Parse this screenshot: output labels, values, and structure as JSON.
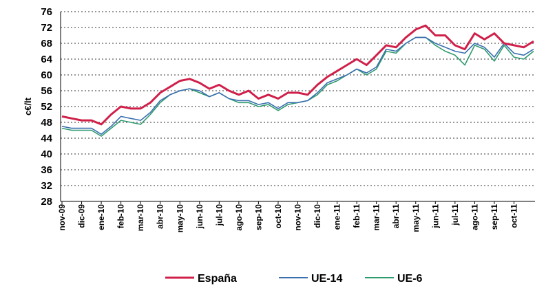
{
  "chart_data": {
    "type": "line",
    "ylabel": "c€/lt",
    "categories": [
      "nov-09",
      null,
      "dic-09",
      null,
      "ene-10",
      null,
      "feb-10",
      null,
      "mar-10",
      null,
      "abr-10",
      null,
      "may-10",
      null,
      "jun-10",
      null,
      "jul-10",
      null,
      "ago-10",
      null,
      "sep-10",
      null,
      "oct-10",
      null,
      "nov-10",
      null,
      "dic-10",
      null,
      "ene-11",
      null,
      "feb-11",
      null,
      "mar-11",
      null,
      "abr-11",
      null,
      "may-11",
      null,
      "jun-11",
      null,
      "jul-11",
      null,
      "ago-11",
      null,
      "sep-11",
      null,
      "oct-11",
      null,
      null
    ],
    "series": [
      {
        "name": "España",
        "color": "#d0204a",
        "values": [
          49.5,
          49,
          48.5,
          48.5,
          47.5,
          50,
          52,
          51.5,
          51.5,
          53,
          55.5,
          57,
          58.5,
          59,
          58,
          56.5,
          57.5,
          56,
          55,
          56,
          54,
          55,
          54,
          55.5,
          55.5,
          55,
          57.5,
          59.5,
          61,
          62.5,
          64,
          62.5,
          65,
          67.5,
          67,
          69.5,
          71.5,
          72.5,
          70,
          70,
          67.5,
          66.5,
          70.5,
          69,
          70.5,
          68,
          67.5,
          67,
          68.5
        ]
      },
      {
        "name": "UE-14",
        "color": "#3a6fb0",
        "values": [
          47,
          46.5,
          46.5,
          46.5,
          45,
          47,
          49.5,
          49,
          48.5,
          50.5,
          53.5,
          55,
          56,
          56.5,
          56,
          54.5,
          55.5,
          54,
          53.5,
          53.5,
          52.5,
          53,
          51.5,
          53,
          53,
          53.5,
          55.5,
          58,
          59,
          60,
          61.5,
          60.5,
          62,
          66.5,
          66,
          68,
          69.5,
          69.5,
          68,
          67,
          66,
          65.5,
          68,
          67,
          64.5,
          68,
          65.5,
          65,
          66.5
        ]
      },
      {
        "name": "UE-6",
        "color": "#2f9a6e",
        "values": [
          46.5,
          46,
          46,
          46,
          44.5,
          46.5,
          48.5,
          48,
          47.5,
          50,
          53,
          55,
          56,
          56.5,
          55.5,
          54.5,
          55.5,
          54,
          53,
          53,
          52,
          52.5,
          51,
          52.5,
          53,
          53.5,
          55,
          57.5,
          58.5,
          60,
          61.5,
          60,
          61.5,
          66,
          65.5,
          68,
          69.5,
          69.5,
          67.5,
          66,
          65,
          62.5,
          67.5,
          66.5,
          63.5,
          67.5,
          64.5,
          64,
          66
        ]
      }
    ],
    "ylim": [
      28,
      76
    ],
    "yticks": [
      28,
      32,
      36,
      40,
      44,
      48,
      52,
      56,
      60,
      64,
      68,
      72,
      76
    ],
    "grid": true
  }
}
